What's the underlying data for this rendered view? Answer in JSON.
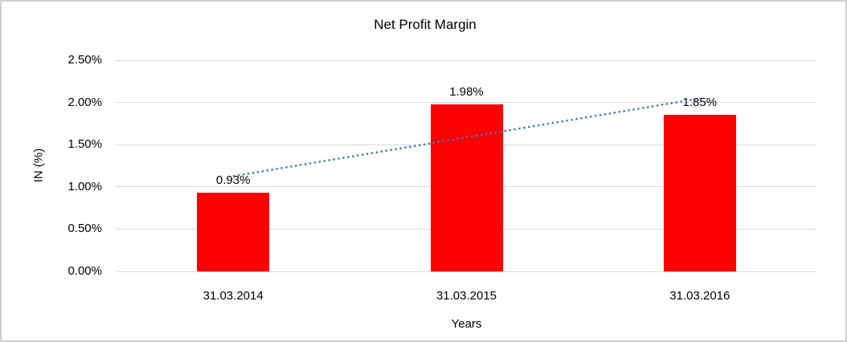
{
  "window": {
    "background_color": "#FFFFFF",
    "border_color": "#CFCFCF"
  },
  "chart_data": {
    "type": "bar",
    "title": "Net Profit Margin",
    "xlabel": "Years",
    "ylabel": "IN (%)",
    "categories": [
      "31.03.2014",
      "31.03.2015",
      "31.03.2016"
    ],
    "values": [
      0.93,
      1.98,
      1.85
    ],
    "data_labels": [
      "0.93%",
      "1.98%",
      "1.85%"
    ],
    "yticks": [
      {
        "value": 0.0,
        "label": "0.00%"
      },
      {
        "value": 0.5,
        "label": "0.50%"
      },
      {
        "value": 1.0,
        "label": "1.00%"
      },
      {
        "value": 1.5,
        "label": "1.50%"
      },
      {
        "value": 2.0,
        "label": "2.00%"
      },
      {
        "value": 2.5,
        "label": "2.50%"
      }
    ],
    "ylim": [
      0,
      2.5
    ],
    "grid": true,
    "legend": false,
    "bar_color": "#FF0000",
    "gridline_color": "#D9D9D9",
    "text_color": "#000000",
    "trendline": {
      "kind": "linear",
      "line_style": "dotted",
      "color": "#4472C4"
    }
  }
}
